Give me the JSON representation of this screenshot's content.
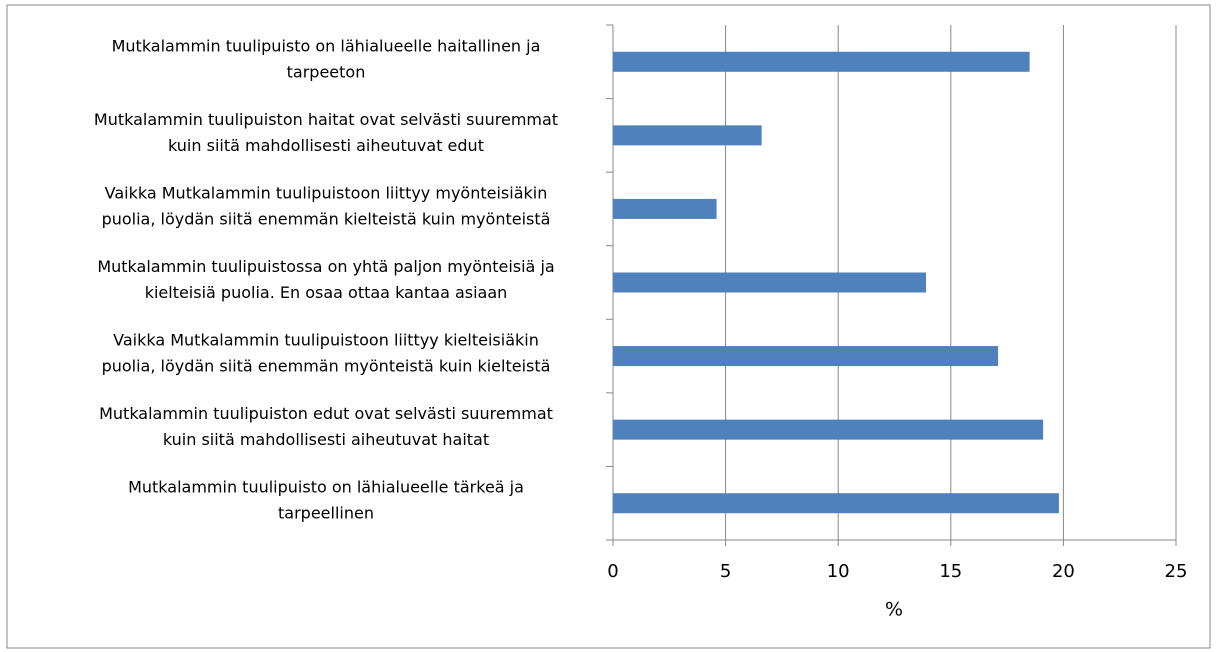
{
  "chart_data": {
    "type": "barh",
    "categories": [
      [
        "Mutkalammin tuulipuisto on lähialueelle haitallinen ja",
        "tarpeeton"
      ],
      [
        "Mutkalammin tuulipuiston haitat ovat selvästi suuremmat",
        "kuin siitä mahdollisesti aiheutuvat edut"
      ],
      [
        "Vaikka Mutkalammin tuulipuistoon liittyy myönteisiäkin",
        "puolia, löydän siitä enemmän kielteistä kuin myönteistä"
      ],
      [
        "Mutkalammin tuulipuistossa on yhtä paljon myönteisiä ja",
        "kielteisiä puolia. En osaa ottaa kantaa asiaan"
      ],
      [
        "Vaikka Mutkalammin tuulipuistoon liittyy kielteisiäkin",
        "puolia, löydän siitä enemmän myönteistä kuin kielteistä"
      ],
      [
        "Mutkalammin tuulipuiston edut ovat selvästi suuremmat",
        "kuin siitä mahdollisesti aiheutuvat haitat"
      ],
      [
        "Mutkalammin tuulipuisto on lähialueelle tärkeä ja",
        "tarpeellinen"
      ]
    ],
    "values": [
      18.5,
      6.6,
      4.6,
      13.9,
      17.1,
      19.1,
      19.8
    ],
    "color": "#4f81bd",
    "xlabel": "%",
    "xlim": [
      0,
      25
    ],
    "xticks": [
      0,
      5,
      10,
      15,
      20,
      25
    ],
    "grid": true
  }
}
